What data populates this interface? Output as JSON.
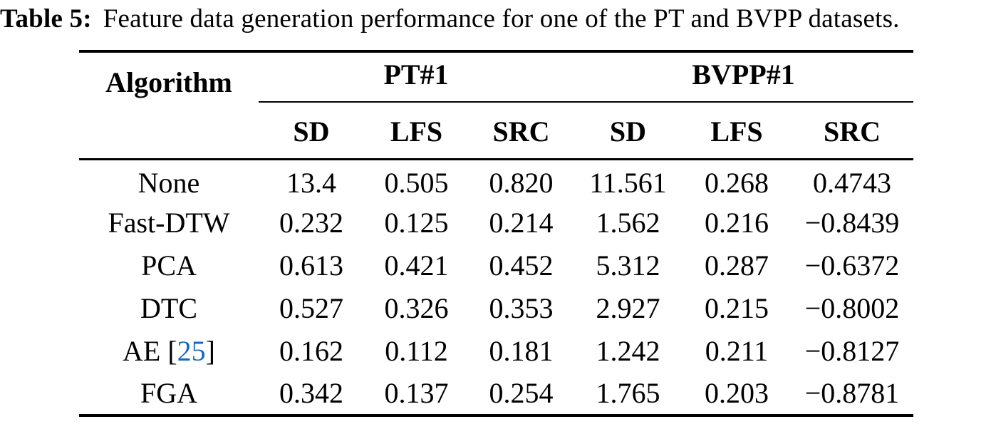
{
  "caption": {
    "label": "Table 5:",
    "text": "Feature data generation performance for one of the PT and BVPP datasets."
  },
  "table": {
    "col0_header": "Algorithm",
    "groups": [
      {
        "label": "PT#1"
      },
      {
        "label": "BVPP#1"
      }
    ],
    "subheaders": [
      "SD",
      "LFS",
      "SRC",
      "SD",
      "LFS",
      "SRC"
    ],
    "rows": [
      {
        "algorithm": "None",
        "cite": null,
        "values": [
          "13.4",
          "0.505",
          "0.820",
          "11.561",
          "0.268",
          "0.4743"
        ]
      },
      {
        "algorithm": "Fast-DTW",
        "cite": null,
        "values": [
          "0.232",
          "0.125",
          "0.214",
          "1.562",
          "0.216",
          "−0.8439"
        ]
      },
      {
        "algorithm": "PCA",
        "cite": null,
        "values": [
          "0.613",
          "0.421",
          "0.452",
          "5.312",
          "0.287",
          "−0.6372"
        ]
      },
      {
        "algorithm": "DTC",
        "cite": null,
        "values": [
          "0.527",
          "0.326",
          "0.353",
          "2.927",
          "0.215",
          "−0.8002"
        ]
      },
      {
        "algorithm": "AE",
        "cite": "25",
        "values": [
          "0.162",
          "0.112",
          "0.181",
          "1.242",
          "0.211",
          "−0.8127"
        ]
      },
      {
        "algorithm": "FGA",
        "cite": null,
        "values": [
          "0.342",
          "0.137",
          "0.254",
          "1.765",
          "0.203",
          "−0.8781"
        ]
      }
    ],
    "citation_color": "#1766c2",
    "text_color": "#000000",
    "background_color": "#ffffff"
  }
}
